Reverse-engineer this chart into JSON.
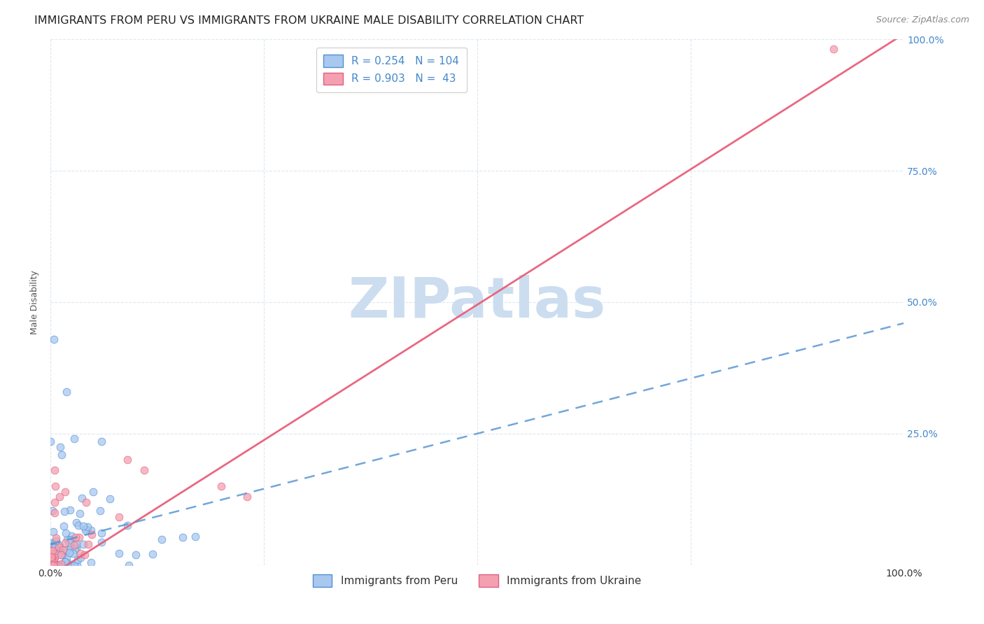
{
  "title": "IMMIGRANTS FROM PERU VS IMMIGRANTS FROM UKRAINE MALE DISABILITY CORRELATION CHART",
  "source": "Source: ZipAtlas.com",
  "ylabel": "Male Disability",
  "peru_color": "#a8c8f0",
  "ukraine_color": "#f4a0b0",
  "peru_edge_color": "#5090d0",
  "ukraine_edge_color": "#e06080",
  "peru_line_color": "#5090d0",
  "ukraine_line_color": "#e8607a",
  "peru_R": 0.254,
  "peru_N": 104,
  "ukraine_R": 0.903,
  "ukraine_N": 43,
  "watermark": "ZIPatlas",
  "watermark_color": "#ccddf0",
  "legend_label_peru": "Immigrants from Peru",
  "legend_label_ukraine": "Immigrants from Ukraine",
  "background_color": "#ffffff",
  "grid_color": "#dde8f0",
  "right_axis_color": "#4488cc",
  "title_fontsize": 11.5,
  "axis_label_fontsize": 9,
  "tick_label_color": "#4488cc"
}
